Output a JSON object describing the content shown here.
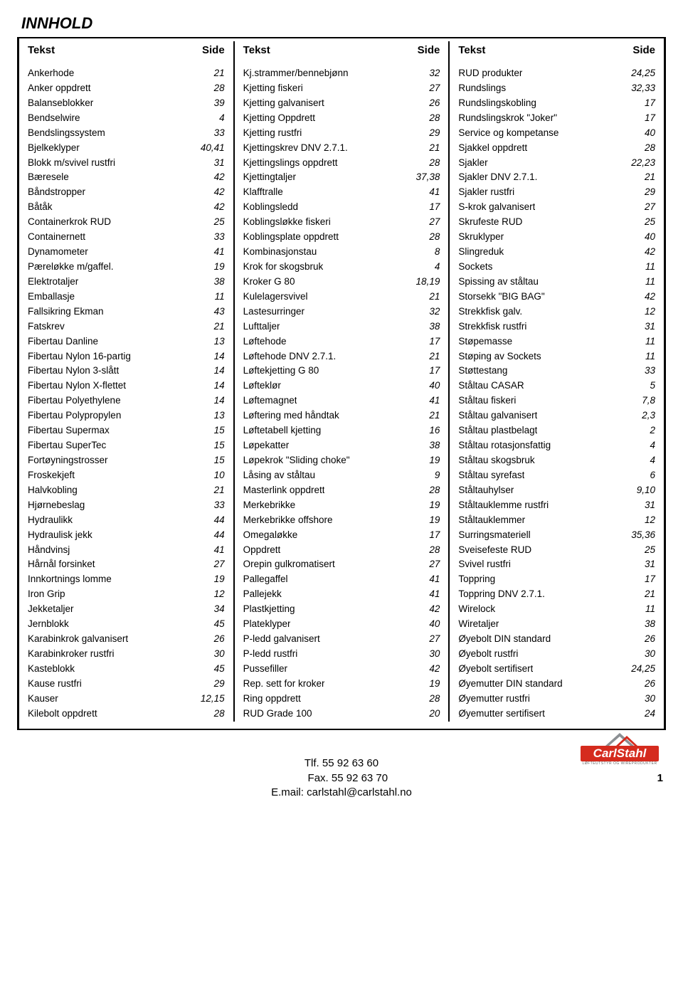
{
  "title": "INNHOLD",
  "headers": {
    "text": "Tekst",
    "page": "Side"
  },
  "columns": [
    {
      "items": [
        {
          "label": "Ankerhode",
          "page": "21"
        },
        {
          "label": "Anker oppdrett",
          "page": "28"
        },
        {
          "label": "Balanseblokker",
          "page": "39"
        },
        {
          "label": "Bendselwire",
          "page": "4"
        },
        {
          "label": "Bendslingssystem",
          "page": "33"
        },
        {
          "label": "Bjelkeklyper",
          "page": "40,41"
        },
        {
          "label": "Blokk m/svivel rustfri",
          "page": "31"
        },
        {
          "label": "Bæresele",
          "page": "42"
        },
        {
          "label": "Båndstropper",
          "page": "42"
        },
        {
          "label": "Båtåk",
          "page": "42"
        },
        {
          "label": "Containerkrok RUD",
          "page": "25"
        },
        {
          "label": "Containernett",
          "page": "33"
        },
        {
          "label": "Dynamometer",
          "page": "41"
        },
        {
          "label": "Pæreløkke m/gaffel.",
          "page": "19"
        },
        {
          "label": "Elektrotaljer",
          "page": "38"
        },
        {
          "label": "Emballasje",
          "page": "11"
        },
        {
          "label": "Fallsikring Ekman",
          "page": "43"
        },
        {
          "label": "Fatskrev",
          "page": "21"
        },
        {
          "label": "Fibertau Danline",
          "page": "13"
        },
        {
          "label": "Fibertau Nylon 16-partig",
          "page": "14"
        },
        {
          "label": "Fibertau Nylon 3-slått",
          "page": "14"
        },
        {
          "label": "Fibertau Nylon X-flettet",
          "page": "14"
        },
        {
          "label": "Fibertau Polyethylene",
          "page": "14"
        },
        {
          "label": "Fibertau Polypropylen",
          "page": "13"
        },
        {
          "label": "Fibertau Supermax",
          "page": "15"
        },
        {
          "label": "Fibertau SuperTec",
          "page": "15"
        },
        {
          "label": "Fortøyningstrosser",
          "page": "15"
        },
        {
          "label": "Froskekjeft",
          "page": "10"
        },
        {
          "label": "Halvkobling",
          "page": "21"
        },
        {
          "label": "Hjørnebeslag",
          "page": "33"
        },
        {
          "label": "Hydraulikk",
          "page": "44"
        },
        {
          "label": "Hydraulisk jekk",
          "page": "44"
        },
        {
          "label": "Håndvinsj",
          "page": "41"
        },
        {
          "label": "Hårnål forsinket",
          "page": "27"
        },
        {
          "label": "Innkortnings lomme",
          "page": "19"
        },
        {
          "label": "Iron Grip",
          "page": "12"
        },
        {
          "label": "Jekketaljer",
          "page": "34"
        },
        {
          "label": "Jernblokk",
          "page": "45"
        },
        {
          "label": "Karabinkrok galvanisert",
          "page": "26"
        },
        {
          "label": "Karabinkroker rustfri",
          "page": "30"
        },
        {
          "label": "Kasteblokk",
          "page": "45"
        },
        {
          "label": "Kause rustfri",
          "page": "29"
        },
        {
          "label": "Kauser",
          "page": "12,15"
        },
        {
          "label": "Kilebolt oppdrett",
          "page": "28"
        }
      ]
    },
    {
      "items": [
        {
          "label": "Kj.strammer/bennebjønn",
          "page": "32"
        },
        {
          "label": "Kjetting fiskeri",
          "page": "27"
        },
        {
          "label": "Kjetting galvanisert",
          "page": "26"
        },
        {
          "label": "Kjetting Oppdrett",
          "page": "28"
        },
        {
          "label": "Kjetting rustfri",
          "page": "29"
        },
        {
          "label": "Kjettingskrev DNV 2.7.1.",
          "page": "21"
        },
        {
          "label": "Kjettingslings oppdrett",
          "page": "28"
        },
        {
          "label": "Kjettingtaljer",
          "page": "37,38"
        },
        {
          "label": "Klafftralle",
          "page": "41"
        },
        {
          "label": "Koblingsledd",
          "page": "17"
        },
        {
          "label": "Koblingsløkke fiskeri",
          "page": "27"
        },
        {
          "label": "Koblingsplate oppdrett",
          "page": "28"
        },
        {
          "label": "Kombinasjonstau",
          "page": "8"
        },
        {
          "label": "Krok for skogsbruk",
          "page": "4"
        },
        {
          "label": "Kroker G 80",
          "page": "18,19"
        },
        {
          "label": "Kulelagersvivel",
          "page": "21"
        },
        {
          "label": "Lastesurringer",
          "page": "32"
        },
        {
          "label": "Lufttaljer",
          "page": "38"
        },
        {
          "label": "Løftehode",
          "page": "17"
        },
        {
          "label": "Løftehode DNV 2.7.1.",
          "page": "21"
        },
        {
          "label": "Løftekjetting G 80",
          "page": "17"
        },
        {
          "label": "Løfteklør",
          "page": "40"
        },
        {
          "label": "Løftemagnet",
          "page": "41"
        },
        {
          "label": "Løftering med håndtak",
          "page": "21"
        },
        {
          "label": "Løftetabell kjetting",
          "page": "16"
        },
        {
          "label": "Løpekatter",
          "page": "38"
        },
        {
          "label": "Løpekrok \"Sliding choke\"",
          "page": "19"
        },
        {
          "label": "Låsing av ståltau",
          "page": "9"
        },
        {
          "label": "Masterlink oppdrett",
          "page": "28"
        },
        {
          "label": "Merkebrikke",
          "page": "19"
        },
        {
          "label": "Merkebrikke offshore",
          "page": "19"
        },
        {
          "label": "Omegaløkke",
          "page": "17"
        },
        {
          "label": "Oppdrett",
          "page": "28"
        },
        {
          "label": "Orepin gulkromatisert",
          "page": "27"
        },
        {
          "label": "Pallegaffel",
          "page": "41"
        },
        {
          "label": "Pallejekk",
          "page": "41"
        },
        {
          "label": "Plastkjetting",
          "page": "42"
        },
        {
          "label": "Plateklyper",
          "page": "40"
        },
        {
          "label": "P-ledd galvanisert",
          "page": "27"
        },
        {
          "label": "P-ledd rustfri",
          "page": "30"
        },
        {
          "label": "Pussefiller",
          "page": "42"
        },
        {
          "label": "Rep. sett for kroker",
          "page": "19"
        },
        {
          "label": "Ring oppdrett",
          "page": "28"
        },
        {
          "label": "RUD Grade 100",
          "page": "20"
        }
      ]
    },
    {
      "items": [
        {
          "label": "RUD produkter",
          "page": "24,25"
        },
        {
          "label": "Rundslings",
          "page": "32,33"
        },
        {
          "label": "Rundslingskobling",
          "page": "17"
        },
        {
          "label": "Rundslingskrok \"Joker\"",
          "page": "17"
        },
        {
          "label": "Service og kompetanse",
          "page": "40"
        },
        {
          "label": "Sjakkel oppdrett",
          "page": "28"
        },
        {
          "label": "Sjakler",
          "page": "22,23"
        },
        {
          "label": "Sjakler DNV 2.7.1.",
          "page": "21"
        },
        {
          "label": "Sjakler rustfri",
          "page": "29"
        },
        {
          "label": "S-krok galvanisert",
          "page": "27"
        },
        {
          "label": "Skrufeste RUD",
          "page": "25"
        },
        {
          "label": "Skruklyper",
          "page": "40"
        },
        {
          "label": "Slingreduk",
          "page": "42"
        },
        {
          "label": "Sockets",
          "page": "11"
        },
        {
          "label": "Spissing av ståltau",
          "page": "11"
        },
        {
          "label": "Storsekk \"BIG BAG\"",
          "page": "42"
        },
        {
          "label": "Strekkfisk galv.",
          "page": "12"
        },
        {
          "label": "Strekkfisk rustfri",
          "page": "31"
        },
        {
          "label": "Støpemasse",
          "page": "11"
        },
        {
          "label": "Støping av Sockets",
          "page": "11"
        },
        {
          "label": "Støttestang",
          "page": "33"
        },
        {
          "label": "Ståltau CASAR",
          "page": "5"
        },
        {
          "label": "Ståltau fiskeri",
          "page": "7,8"
        },
        {
          "label": "Ståltau galvanisert",
          "page": "2,3"
        },
        {
          "label": "Ståltau plastbelagt",
          "page": "2"
        },
        {
          "label": "Ståltau rotasjonsfattig",
          "page": "4"
        },
        {
          "label": "Ståltau skogsbruk",
          "page": "4"
        },
        {
          "label": "Ståltau syrefast",
          "page": "6"
        },
        {
          "label": "Ståltauhylser",
          "page": "9,10"
        },
        {
          "label": "Ståltauklemme rustfri",
          "page": "31"
        },
        {
          "label": "Ståltauklemmer",
          "page": "12"
        },
        {
          "label": "Surringsmateriell",
          "page": "35,36"
        },
        {
          "label": "Sveisefeste RUD",
          "page": "25"
        },
        {
          "label": "Svivel rustfri",
          "page": "31"
        },
        {
          "label": "Toppring",
          "page": "17"
        },
        {
          "label": "Toppring DNV 2.7.1.",
          "page": "21"
        },
        {
          "label": "Wirelock",
          "page": "11"
        },
        {
          "label": "Wiretaljer",
          "page": "38"
        },
        {
          "label": "Øyebolt DIN standard",
          "page": "26"
        },
        {
          "label": "Øyebolt rustfri",
          "page": "30"
        },
        {
          "label": "Øyebolt sertifisert",
          "page": "24,25"
        },
        {
          "label": "Øyemutter DIN standard",
          "page": "26"
        },
        {
          "label": "Øyemutter rustfri",
          "page": "30"
        },
        {
          "label": "Øyemutter sertifisert",
          "page": "24"
        }
      ]
    }
  ],
  "footer": {
    "tel": "Tlf. 55 92 63 60",
    "fax": "Fax. 55 92 63 70",
    "email": "E.mail: carlstahl@carlstahl.no"
  },
  "logo": {
    "name": "CarlStahl",
    "tagline": "LØFTEUTSTYR OG WIREPRODUKTER",
    "brand_color": "#d52b1e",
    "roof_color": "#8b8f93"
  },
  "pagenum": "1"
}
